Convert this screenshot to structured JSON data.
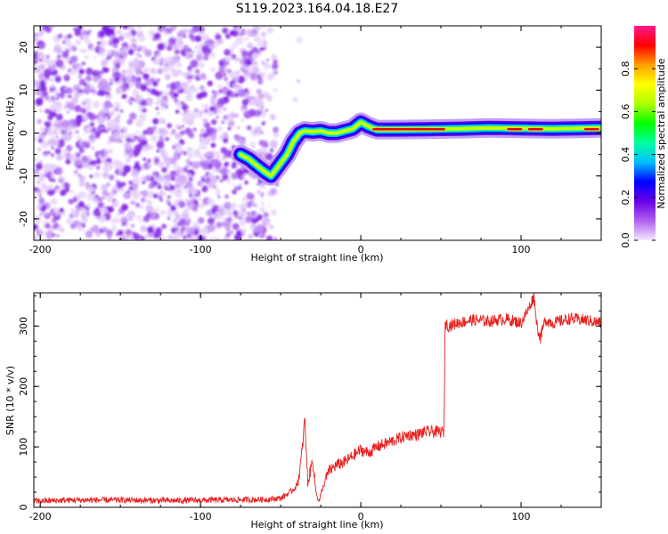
{
  "title": "S119.2023.164.04.18.E27",
  "chart_data": [
    {
      "type": "heatmap",
      "xlabel": "Height of straight line (km)",
      "ylabel": "Frequency (Hz)",
      "xlim": [
        -204,
        150
      ],
      "ylim": [
        -25,
        25
      ],
      "xticks": [
        -200,
        -100,
        0,
        100
      ],
      "yticks": [
        -20,
        -10,
        0,
        10,
        20
      ],
      "colorbar": {
        "label": "Normalized spectral amplitude",
        "range": [
          0,
          1
        ],
        "ticks": [
          "0.0",
          "0.2",
          "0.4",
          "0.6",
          "0.8"
        ],
        "colors": [
          "#f4eafc",
          "#b060f0",
          "#6a00e8",
          "#0000ff",
          "#00bfff",
          "#00ffa0",
          "#00ff00",
          "#b0ff00",
          "#ffff00",
          "#ffa000",
          "#ff0000",
          "#ff1a8c"
        ]
      },
      "ridge": {
        "x": [
          -75,
          -70,
          -65,
          -60,
          -58,
          -56,
          -54,
          -52,
          -50,
          -48,
          -46,
          -44,
          -42,
          -40,
          -38,
          -35,
          -30,
          -25,
          -20,
          -15,
          -10,
          -5,
          0,
          5,
          10,
          20,
          40,
          60,
          80,
          100,
          120,
          150
        ],
        "y": [
          -5,
          -6,
          -7.5,
          -9,
          -9.5,
          -10,
          -9,
          -8,
          -7,
          -6,
          -5,
          -3.5,
          -2,
          -1,
          0,
          0.5,
          0.3,
          0.5,
          0,
          0,
          0.5,
          1,
          2.5,
          1.5,
          0.8,
          0.8,
          0.9,
          1,
          1.2,
          1.1,
          1,
          1.2
        ]
      },
      "noise_region_x": [
        -204,
        -38
      ]
    },
    {
      "type": "line",
      "xlabel": "Height of straight line (km)",
      "ylabel": "SNR (10 * v/v)",
      "xlim": [
        -204,
        150
      ],
      "ylim": [
        0,
        355
      ],
      "xticks": [
        -200,
        -100,
        0,
        100
      ],
      "yticks": [
        0,
        100,
        200,
        300
      ],
      "color": "#e8201e",
      "series": [
        {
          "x": [
            -204,
            -180,
            -150,
            -120,
            -90,
            -60,
            -50,
            -44,
            -40,
            -38,
            -36,
            -35,
            -34,
            -33,
            -30,
            -28,
            -26,
            -24,
            -22,
            -20,
            -15,
            -10,
            -5,
            0,
            5,
            10,
            15,
            20,
            25,
            30,
            35,
            40,
            45,
            50,
            52,
            52.5,
            55,
            60,
            70,
            80,
            90,
            100,
            105,
            108,
            110,
            112,
            115,
            120,
            130,
            140,
            150
          ],
          "y": [
            10,
            12,
            12,
            11,
            12,
            13,
            15,
            25,
            35,
            60,
            110,
            150,
            90,
            40,
            80,
            25,
            10,
            30,
            45,
            60,
            70,
            75,
            85,
            95,
            90,
            100,
            105,
            110,
            115,
            120,
            120,
            125,
            125,
            125,
            125,
            305,
            300,
            305,
            310,
            308,
            312,
            305,
            330,
            350,
            300,
            280,
            310,
            305,
            312,
            310,
            305
          ]
        }
      ]
    }
  ]
}
